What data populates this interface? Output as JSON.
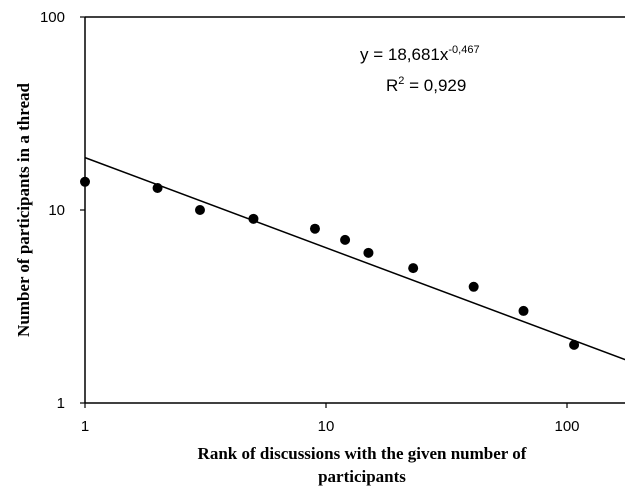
{
  "chart_data": {
    "type": "scatter",
    "xlabel_lines": [
      "Rank of discussions with the given number of",
      "participants"
    ],
    "ylabel": "Number of participants in a thread",
    "x_scale": "log",
    "y_scale": "log",
    "xlim": [
      1,
      180
    ],
    "ylim": [
      1,
      100
    ],
    "x_ticks": [
      {
        "value": 1,
        "label": "1"
      },
      {
        "value": 10,
        "label": "10"
      },
      {
        "value": 100,
        "label": "100"
      }
    ],
    "y_ticks": [
      {
        "value": 1,
        "label": "1"
      },
      {
        "value": 10,
        "label": "10"
      },
      {
        "value": 100,
        "label": "100"
      }
    ],
    "grid": false,
    "legend": "none",
    "points": [
      {
        "x": 1,
        "y": 14
      },
      {
        "x": 2,
        "y": 13
      },
      {
        "x": 3,
        "y": 10
      },
      {
        "x": 5,
        "y": 9
      },
      {
        "x": 9,
        "y": 8
      },
      {
        "x": 12,
        "y": 7
      },
      {
        "x": 15,
        "y": 6
      },
      {
        "x": 23,
        "y": 5
      },
      {
        "x": 41,
        "y": 4
      },
      {
        "x": 66,
        "y": 3
      },
      {
        "x": 107,
        "y": 2
      }
    ],
    "trendline": {
      "type": "power",
      "coefficient": 18.681,
      "exponent": -0.467
    },
    "annotation": {
      "equation_prefix": "y = 18,681x",
      "equation_exponent": "-0,467",
      "r2_prefix": "R",
      "r2_exponent": "2",
      "r2_suffix": " = 0,929"
    },
    "colors": {
      "marker": "#000000",
      "line": "#000000",
      "axis": "#000000"
    }
  }
}
